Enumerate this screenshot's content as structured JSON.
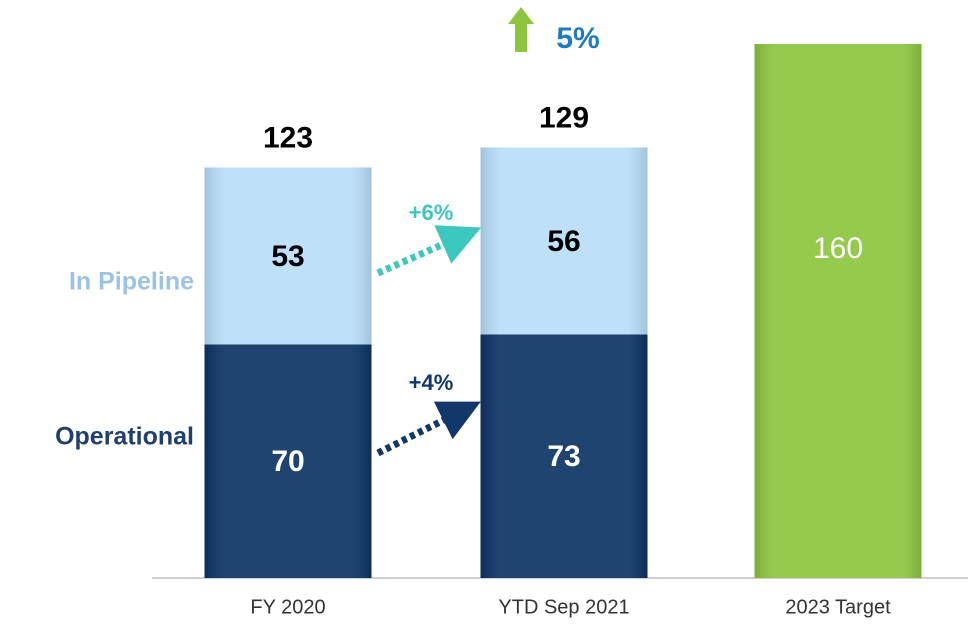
{
  "chart_data": {
    "type": "stacked_bar",
    "categories": [
      "FY 2020",
      "YTD Sep 2021",
      "2023 Target"
    ],
    "series": [
      {
        "name": "Operational",
        "color": "#0c3464",
        "label_color": "#1f3f6e",
        "values": [
          70,
          73,
          null
        ]
      },
      {
        "name": "In Pipeline",
        "color": "#b8ddf8",
        "label_color": "#9cc3e6",
        "values": [
          53,
          56,
          null
        ]
      },
      {
        "color": "#8cc63f",
        "values": [
          null,
          null,
          160
        ]
      }
    ],
    "totals": [
      123,
      129,
      null
    ],
    "annotations": [
      "+6%",
      "+4%",
      "5%"
    ],
    "ylim": [
      0,
      160
    ]
  }
}
